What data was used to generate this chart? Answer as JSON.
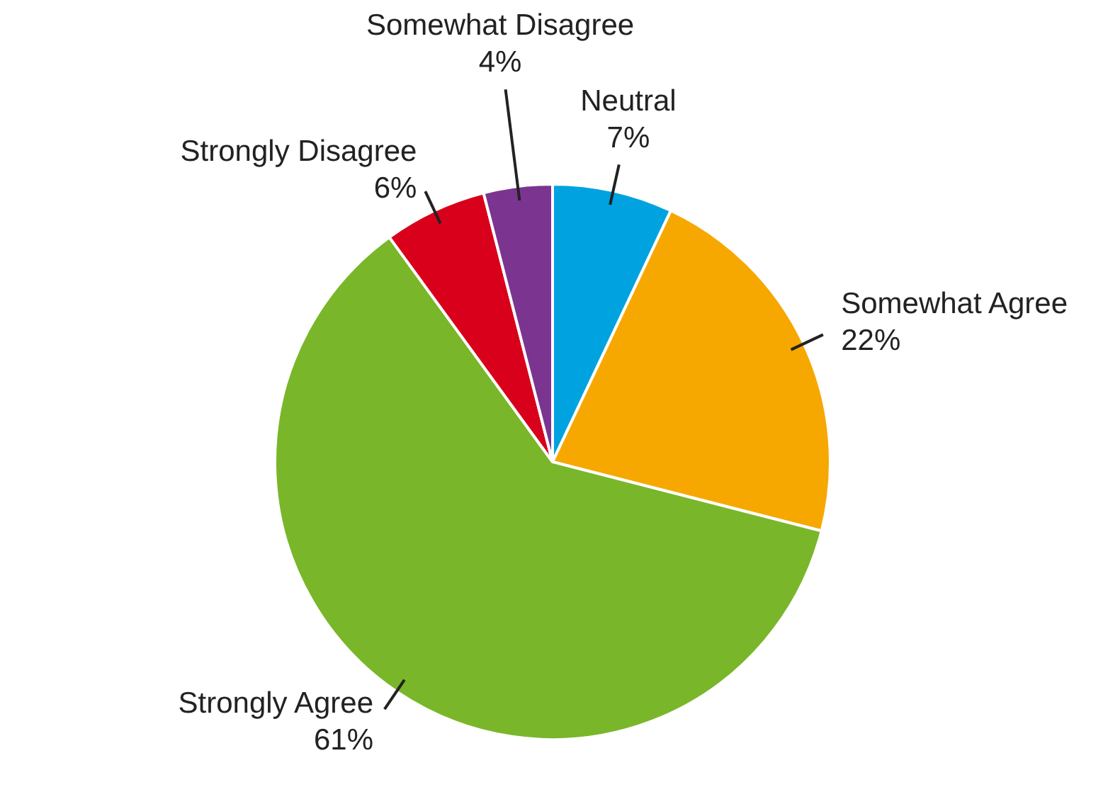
{
  "chart_data": {
    "type": "pie",
    "categories": [
      "Neutral",
      "Somewhat Agree",
      "Strongly Agree",
      "Strongly Disagree",
      "Somewhat Disagree"
    ],
    "values": [
      7,
      22,
      61,
      6,
      4
    ],
    "colors": [
      "#00a3e0",
      "#f7a800",
      "#7ab62a",
      "#d9001b",
      "#7b3590"
    ],
    "value_labels": [
      "7%",
      "22%",
      "61%",
      "6%",
      "4%"
    ]
  }
}
